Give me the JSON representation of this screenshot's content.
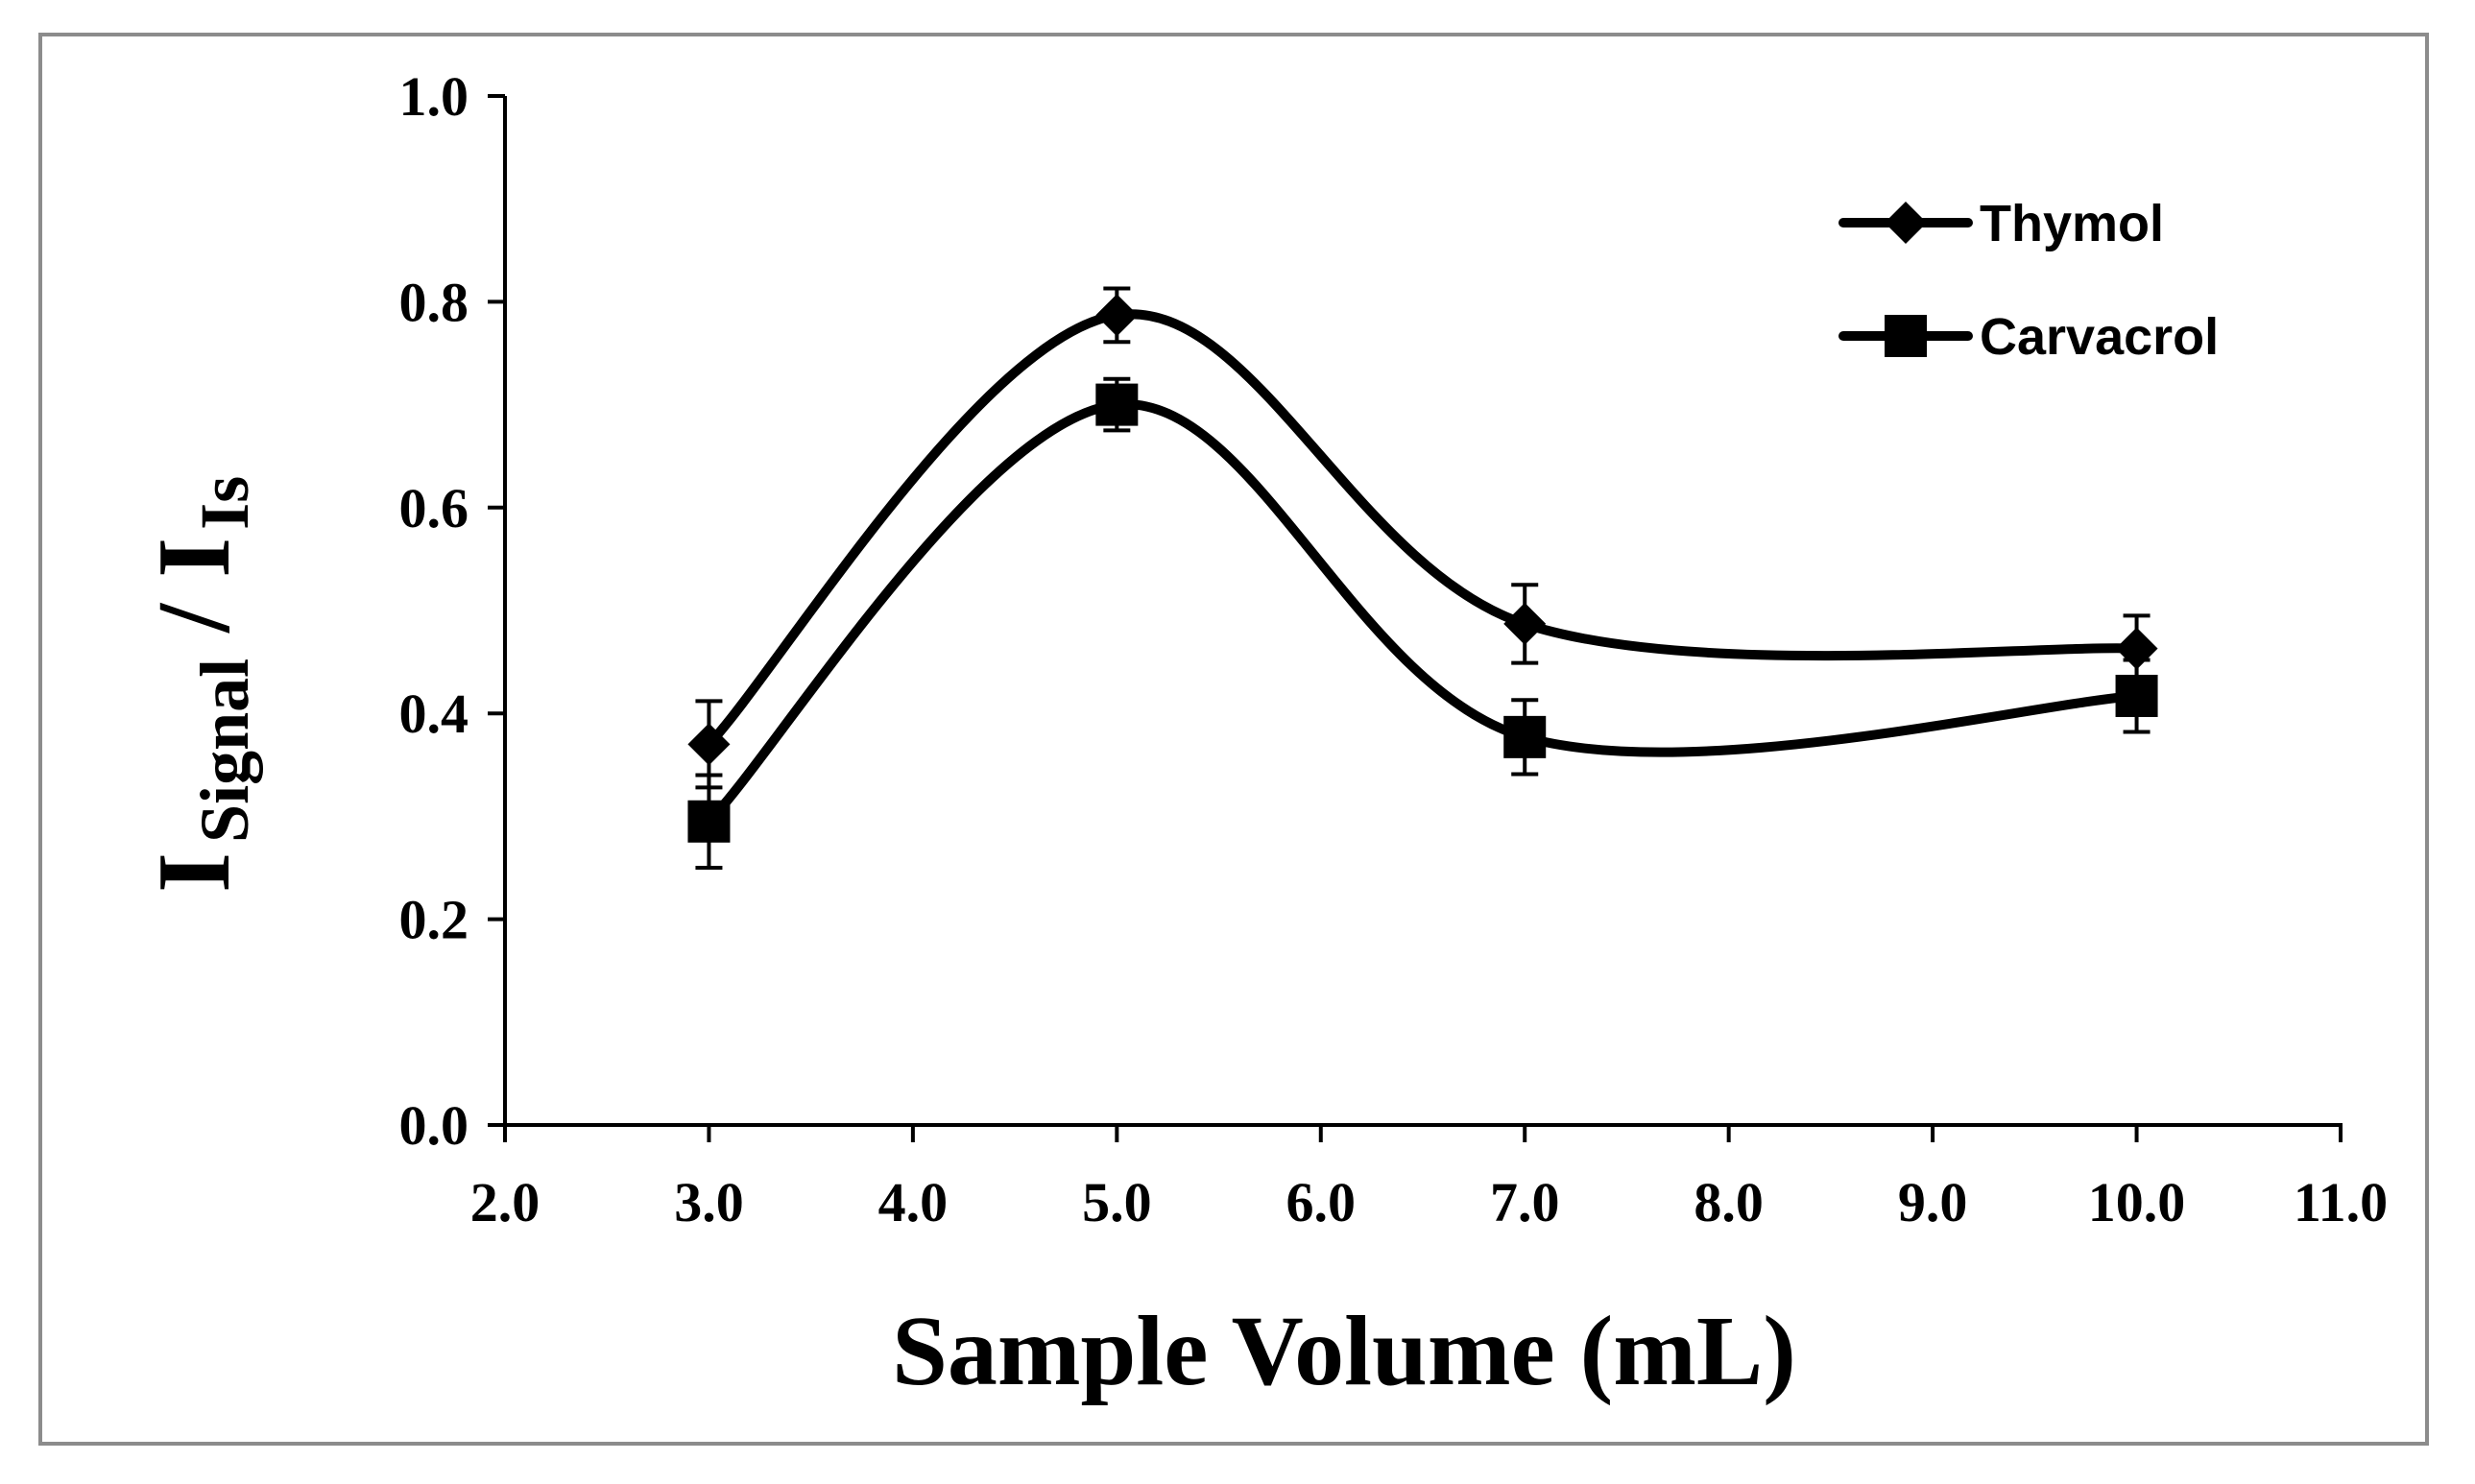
{
  "chart_data": {
    "type": "line",
    "smooth": true,
    "title": "",
    "xlabel": "Sample Volume (mL)",
    "ylabel": {
      "main": "I",
      "sub1": "Signal",
      "sep": " / I",
      "sub2": "Is"
    },
    "xlim": [
      2.0,
      11.0
    ],
    "ylim": [
      0.0,
      1.0
    ],
    "xticks": [
      "2.0",
      "3.0",
      "4.0",
      "5.0",
      "6.0",
      "7.0",
      "8.0",
      "9.0",
      "10.0",
      "11.0"
    ],
    "yticks": [
      "0.0",
      "0.2",
      "0.4",
      "0.6",
      "0.8",
      "1.0"
    ],
    "grid": false,
    "legend_position": "top-right",
    "series": [
      {
        "name": "Thymol",
        "marker": "diamond",
        "x": [
          3.0,
          5.0,
          7.0,
          10.0
        ],
        "y": [
          0.37,
          0.787,
          0.487,
          0.463
        ],
        "error": [
          0.042,
          0.026,
          0.038,
          0.032
        ]
      },
      {
        "name": "Carvacrol",
        "marker": "square",
        "x": [
          3.0,
          5.0,
          7.0,
          10.0
        ],
        "y": [
          0.295,
          0.7,
          0.377,
          0.417
        ],
        "error": [
          0.045,
          0.025,
          0.036,
          0.035
        ]
      }
    ],
    "colors": {
      "line": "#000000",
      "frame": "#8c8c8c",
      "background": "#ffffff"
    }
  }
}
